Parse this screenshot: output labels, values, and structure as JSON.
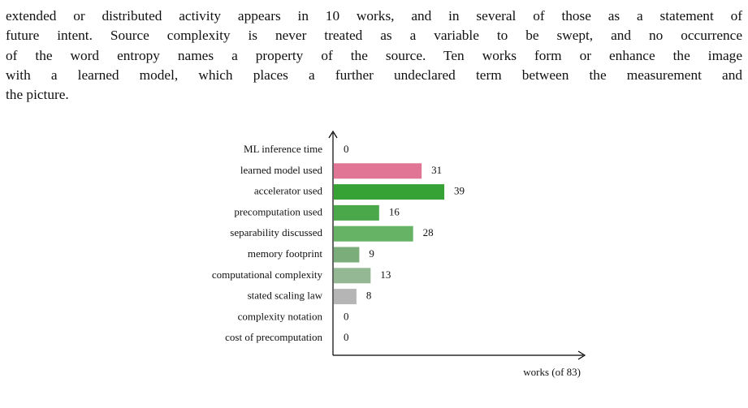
{
  "paragraph": {
    "lines": [
      "extended or distributed activity appears in 10 works, and in several of those as a statement of",
      "future intent. Source complexity is never treated as a variable to be swept, and no occurrence",
      "of the word entropy names a property of the source. Ten works form or enhance the image",
      "with a learned model, which places a further undeclared term between the measurement and",
      "the picture."
    ]
  },
  "chart_data": {
    "type": "bar",
    "orientation": "horizontal",
    "categories": [
      "ML inference time",
      "learned model used",
      "accelerator used",
      "precomputation used",
      "separability discussed",
      "memory footprint",
      "computational complexity",
      "stated scaling law",
      "complexity notation",
      "cost of precomputation"
    ],
    "values": [
      0,
      31,
      39,
      16,
      28,
      9,
      13,
      8,
      0,
      0
    ],
    "colors": [
      "#b5b5b5",
      "#e07595",
      "#36a236",
      "#4aa84a",
      "#66b366",
      "#7aad7a",
      "#94b894",
      "#b5b5b5",
      "#b5b5b5",
      "#b5b5b5"
    ],
    "xlabel": "works (of 83)",
    "xlim": [
      0,
      88
    ]
  }
}
